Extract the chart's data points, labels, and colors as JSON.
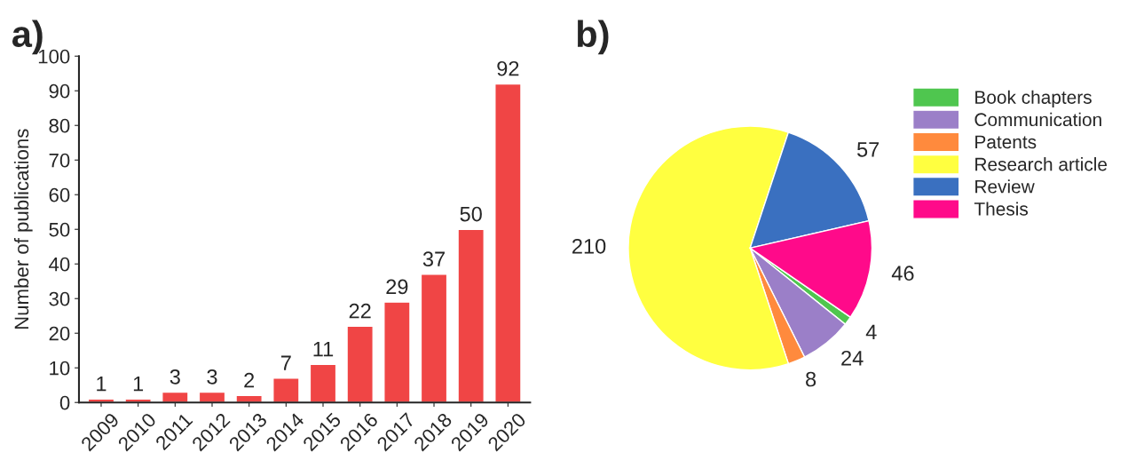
{
  "chart_data": [
    {
      "type": "bar",
      "title": "a)",
      "ylabel": "Number of publications",
      "categories": [
        "2009",
        "2010",
        "2011",
        "2012",
        "2013",
        "2014",
        "2015",
        "2016",
        "2017",
        "2018",
        "2019",
        "2020"
      ],
      "values": [
        1,
        1,
        3,
        3,
        2,
        7,
        11,
        22,
        29,
        37,
        50,
        92
      ],
      "color": "#f04545",
      "ylim": [
        0,
        100
      ],
      "yticks": [
        0,
        10,
        20,
        30,
        40,
        50,
        60,
        70,
        80,
        90,
        100
      ],
      "data_labels": true,
      "grid": false
    },
    {
      "type": "pie",
      "title": "b)",
      "categories": [
        "Book chapters",
        "Communication",
        "Patents",
        "Research article",
        "Review",
        "Thesis"
      ],
      "values": [
        4,
        24,
        8,
        210,
        57,
        46
      ],
      "colors": [
        "#4fc64f",
        "#9b7fc8",
        "#ff8a3d",
        "#ffff40",
        "#3a70c0",
        "#ff0a8a"
      ],
      "data_labels": true,
      "legend": "top right"
    }
  ]
}
